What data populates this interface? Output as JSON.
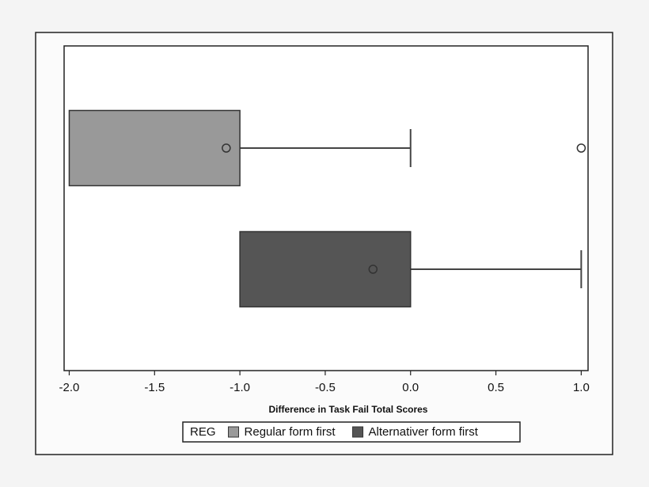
{
  "chart_data": {
    "type": "boxplot",
    "orientation": "horizontal",
    "x_label": "Difference in Task Fail Total Scores",
    "legend_title": "REG",
    "legend_position": "bottom",
    "xlim": [
      -2.03,
      1.04
    ],
    "xticks": [
      {
        "value": -2,
        "label": "-2.0"
      },
      -1.5,
      {
        "value": -1,
        "label": "-1.0"
      },
      -0.5,
      {
        "value": 0,
        "label": "0.0"
      },
      0.5,
      {
        "value": 1,
        "label": "1.0"
      }
    ],
    "series": [
      {
        "name": "Regular form first",
        "color": "#999999",
        "min": -2.0,
        "q1": -2.0,
        "q3": -1.0,
        "max": 0.0,
        "mean": -1.08,
        "outliers": [
          1.0
        ]
      },
      {
        "name": "Alternativer form first",
        "color": "#555555",
        "min": -1.0,
        "q1": -1.0,
        "q3": 0.0,
        "max": 1.0,
        "mean": -0.22,
        "outliers": []
      }
    ]
  }
}
